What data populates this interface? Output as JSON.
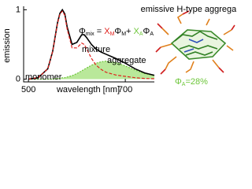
{
  "chart_data": {
    "type": "line",
    "title": "emissive H-type aggregate",
    "xlabel": "wavelength [nm]",
    "ylabel": "emission",
    "xlim": [
      490,
      760
    ],
    "ylim": [
      -0.04,
      1.05
    ],
    "xticks": [
      500,
      700
    ],
    "yticks": [
      0,
      1
    ],
    "x": [
      500,
      520,
      540,
      550,
      560,
      565,
      570,
      575,
      580,
      590,
      600,
      610,
      615,
      620,
      630,
      640,
      650,
      660,
      680,
      700,
      720,
      740,
      760
    ],
    "series": [
      {
        "name": "aggregate",
        "color": "#6dc63a",
        "fill": "#b9e89a",
        "style": "area",
        "values": [
          0,
          0,
          0,
          0,
          0.01,
          0.01,
          0.02,
          0.02,
          0.03,
          0.05,
          0.08,
          0.12,
          0.14,
          0.16,
          0.2,
          0.23,
          0.25,
          0.26,
          0.24,
          0.19,
          0.13,
          0.08,
          0.05
        ]
      },
      {
        "name": "mixture",
        "color": "#000000",
        "style": "solid",
        "values": [
          0,
          0.02,
          0.15,
          0.4,
          0.81,
          0.95,
          1.0,
          0.94,
          0.75,
          0.5,
          0.53,
          0.64,
          0.64,
          0.6,
          0.5,
          0.43,
          0.39,
          0.36,
          0.3,
          0.23,
          0.15,
          0.09,
          0.055
        ]
      },
      {
        "name": "monomer",
        "color": "#e0201c",
        "style": "dashed",
        "values": [
          0,
          0.02,
          0.15,
          0.4,
          0.8,
          0.94,
          0.98,
          0.92,
          0.72,
          0.45,
          0.45,
          0.52,
          0.5,
          0.44,
          0.3,
          0.2,
          0.14,
          0.1,
          0.06,
          0.04,
          0.02,
          0.01,
          0.005
        ]
      }
    ],
    "formula": [
      {
        "text": "Φ",
        "color": "#000000"
      },
      {
        "text": "mix",
        "color": "#000000",
        "sub": true
      },
      {
        "text": " = ",
        "color": "#000000"
      },
      {
        "text": "X",
        "color": "#e0201c"
      },
      {
        "text": "M",
        "color": "#e0201c",
        "sub": true
      },
      {
        "text": "Φ",
        "color": "#000000"
      },
      {
        "text": "M",
        "color": "#000000",
        "sub": true
      },
      {
        "text": "+ ",
        "color": "#000000"
      },
      {
        "text": "X",
        "color": "#6dc63a"
      },
      {
        "text": "A",
        "color": "#6dc63a",
        "sub": true
      },
      {
        "text": "Φ",
        "color": "#000000"
      },
      {
        "text": "A",
        "color": "#000000",
        "sub": true
      }
    ],
    "quantum_yield": [
      {
        "text": "Φ",
        "color": "#6dc63a"
      },
      {
        "text": "A",
        "color": "#6dc63a",
        "sub": true
      },
      {
        "text": "=28%",
        "color": "#6dc63a"
      }
    ]
  }
}
